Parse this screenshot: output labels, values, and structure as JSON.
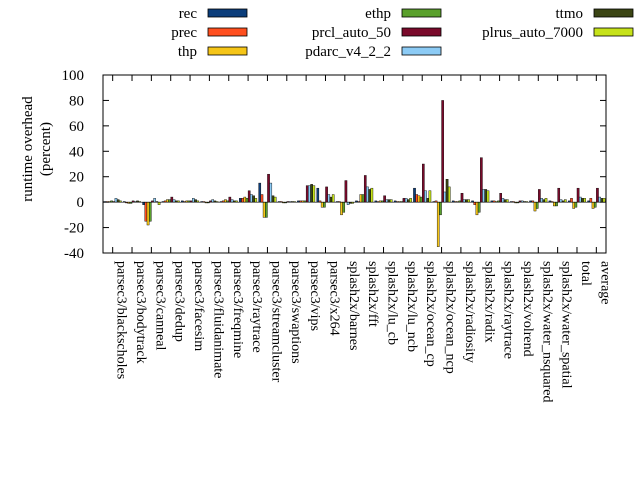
{
  "chart_data": {
    "type": "bar",
    "ylabel": [
      "runtime overhead",
      "(percent)"
    ],
    "ylim": [
      -40,
      100
    ],
    "yticks": [
      -40,
      -20,
      0,
      20,
      40,
      60,
      80,
      100
    ],
    "grid": false,
    "legend_placement": "top",
    "categories": [
      "parsec3/blackscholes",
      "parsec3/bodytrack",
      "parsec3/canneal",
      "parsec3/dedup",
      "parsec3/facesim",
      "parsec3/fluidanimate",
      "parsec3/freqmine",
      "parsec3/raytrace",
      "parsec3/streamcluster",
      "parsec3/swaptions",
      "parsec3/vips",
      "parsec3/x264",
      "splash2x/barnes",
      "splash2x/fft",
      "splash2x/lu_cb",
      "splash2x/lu_ncb",
      "splash2x/ocean_cp",
      "splash2x/ocean_ncp",
      "splash2x/radiosity",
      "splash2x/radix",
      "splash2x/raytrace",
      "splash2x/volrend",
      "splash2x/water_nsquared",
      "splash2x/water_spatial",
      "total",
      "average"
    ],
    "series": [
      {
        "name": "rec",
        "color": "#0b3d7a",
        "values": [
          0.5,
          0.5,
          -2,
          0.5,
          1,
          0.5,
          0.5,
          3,
          15,
          0.5,
          1,
          11,
          0.5,
          1,
          1,
          1,
          11,
          0.5,
          1,
          1,
          1,
          0.5,
          1,
          1,
          1,
          1
        ]
      },
      {
        "name": "prec",
        "color": "#ff4f1f",
        "values": [
          0.5,
          -0.5,
          -15,
          1,
          0.5,
          0.5,
          1,
          3,
          6,
          0.5,
          1,
          1,
          0.5,
          0.5,
          0.5,
          0.5,
          6,
          1,
          0.5,
          -2,
          1,
          0.5,
          1,
          0.5,
          3,
          3
        ]
      },
      {
        "name": "thp",
        "color": "#f5c518",
        "values": [
          0.5,
          -1,
          -18,
          2,
          1,
          -0.5,
          2,
          4,
          -12,
          0,
          1,
          -4,
          -10,
          6,
          1,
          0.5,
          5,
          -35,
          0.5,
          -10,
          0.5,
          0,
          -7,
          -3,
          -5,
          -5
        ]
      },
      {
        "name": "ethp",
        "color": "#5aa02c",
        "values": [
          1,
          -1,
          -15,
          2,
          1,
          0,
          1,
          3,
          -12,
          0,
          1,
          -4,
          -8,
          6,
          1,
          0.5,
          4,
          -10,
          1,
          -8,
          1,
          0,
          -5,
          -3,
          -4,
          -4
        ]
      },
      {
        "name": "prcl_auto_50",
        "color": "#7a0a2b",
        "values": [
          0.5,
          1,
          1,
          4,
          1,
          1,
          4,
          9,
          22,
          0.5,
          13,
          12,
          17,
          21,
          5,
          3,
          30,
          80,
          7,
          35,
          7,
          1,
          10,
          11,
          11,
          11
        ]
      },
      {
        "name": "pdarc_v4_2_2",
        "color": "#8ccbf5",
        "values": [
          3,
          0.5,
          3,
          2,
          3,
          2,
          2,
          6,
          15,
          0.5,
          13,
          6,
          -2,
          12,
          2,
          3,
          9,
          8,
          2,
          10,
          3,
          1,
          3,
          2,
          4,
          4
        ]
      },
      {
        "name": "ttmo",
        "color": "#3b4514",
        "values": [
          2,
          1,
          0.5,
          1,
          2,
          1,
          1,
          5,
          5,
          0.5,
          14,
          4,
          -1,
          10,
          2,
          2,
          3,
          18,
          2,
          10,
          2,
          0.5,
          2,
          1,
          3,
          3
        ]
      },
      {
        "name": "plrus_auto_7000",
        "color": "#c6e21a",
        "values": [
          1,
          0.5,
          -2,
          1,
          1,
          0.5,
          1,
          3,
          4,
          0.5,
          13,
          6,
          -1,
          11,
          2,
          3,
          9,
          12,
          2,
          9,
          2,
          0.5,
          3,
          2,
          3,
          3
        ]
      }
    ]
  }
}
